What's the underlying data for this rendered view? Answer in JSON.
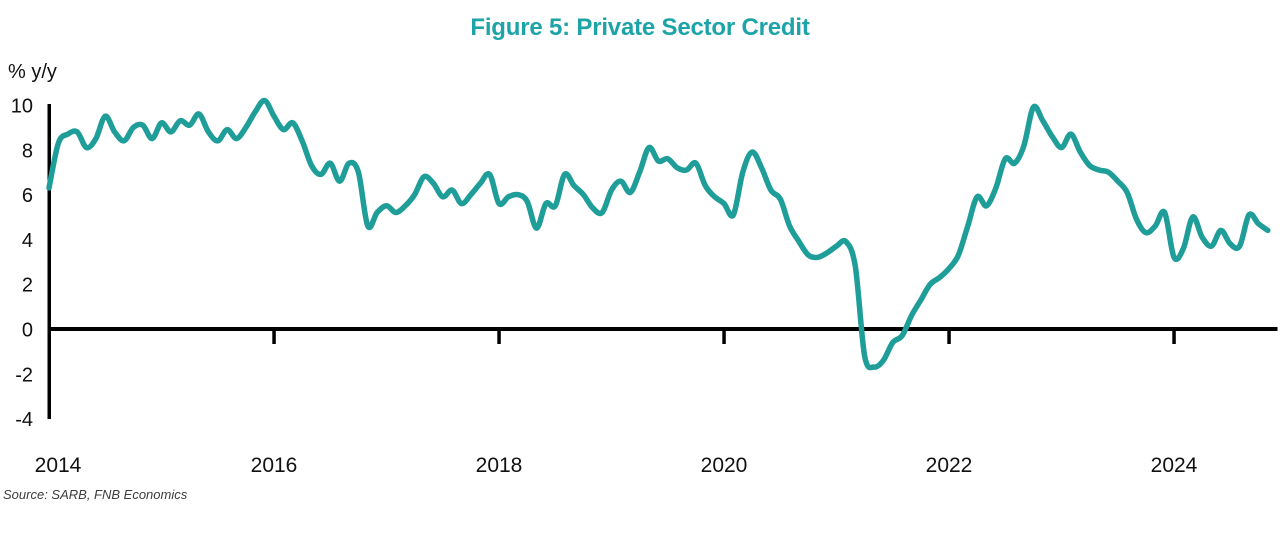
{
  "title": "Figure 5: Private Sector Credit",
  "y_axis_label": "% y/y",
  "source_note": "Source: SARB, FNB Economics",
  "colors": {
    "line": "#1f9d99",
    "title": "#1da4a8",
    "axis": "#000000",
    "tick_text": "#111111",
    "source_text": "#3d3d3d"
  },
  "chart_data": {
    "type": "line",
    "title": "Figure 5: Private Sector Credit",
    "ylabel": "% y/y",
    "xlabel": "",
    "frequency": "monthly",
    "x_start": "2014-01",
    "x_end": "2024-11",
    "x_tick_labels": [
      "2014",
      "2016",
      "2018",
      "2020",
      "2022",
      "2024"
    ],
    "y_ticks": [
      10,
      8,
      6,
      4,
      2,
      0,
      -2,
      -4
    ],
    "ylim": [
      -4,
      10.5
    ],
    "grid": false,
    "legend_position": "none",
    "series": [
      {
        "name": "Private sector credit growth (% y/y)",
        "values": [
          6.3,
          8.3,
          8.7,
          8.8,
          8.1,
          8.5,
          9.5,
          8.8,
          8.4,
          9.0,
          9.1,
          8.5,
          9.2,
          8.8,
          9.3,
          9.1,
          9.6,
          8.8,
          8.4,
          8.9,
          8.5,
          9.0,
          9.7,
          10.2,
          9.5,
          8.9,
          9.2,
          8.4,
          7.3,
          6.9,
          7.4,
          6.6,
          7.4,
          7.0,
          4.6,
          5.2,
          5.5,
          5.2,
          5.5,
          6.0,
          6.8,
          6.5,
          5.9,
          6.2,
          5.6,
          6.0,
          6.5,
          6.9,
          5.6,
          5.9,
          6.0,
          5.7,
          4.5,
          5.6,
          5.5,
          6.9,
          6.4,
          6.0,
          5.4,
          5.2,
          6.2,
          6.6,
          6.1,
          7.0,
          8.1,
          7.5,
          7.6,
          7.2,
          7.1,
          7.4,
          6.4,
          5.9,
          5.6,
          5.1,
          7.0,
          7.9,
          7.2,
          6.2,
          5.8,
          4.6,
          3.9,
          3.3,
          3.2,
          3.4,
          3.7,
          3.9,
          2.8,
          -1.2,
          -1.7,
          -1.4,
          -0.6,
          -0.3,
          0.6,
          1.3,
          2.0,
          2.3,
          2.7,
          3.3,
          4.6,
          5.9,
          5.5,
          6.3,
          7.6,
          7.4,
          8.2,
          9.9,
          9.3,
          8.6,
          8.1,
          8.7,
          7.9,
          7.3,
          7.1,
          7.0,
          6.6,
          6.1,
          4.9,
          4.3,
          4.6,
          5.2,
          3.2,
          3.6,
          5.0,
          4.1,
          3.7,
          4.4,
          3.8,
          3.7,
          5.1,
          4.7,
          4.4
        ]
      }
    ]
  }
}
